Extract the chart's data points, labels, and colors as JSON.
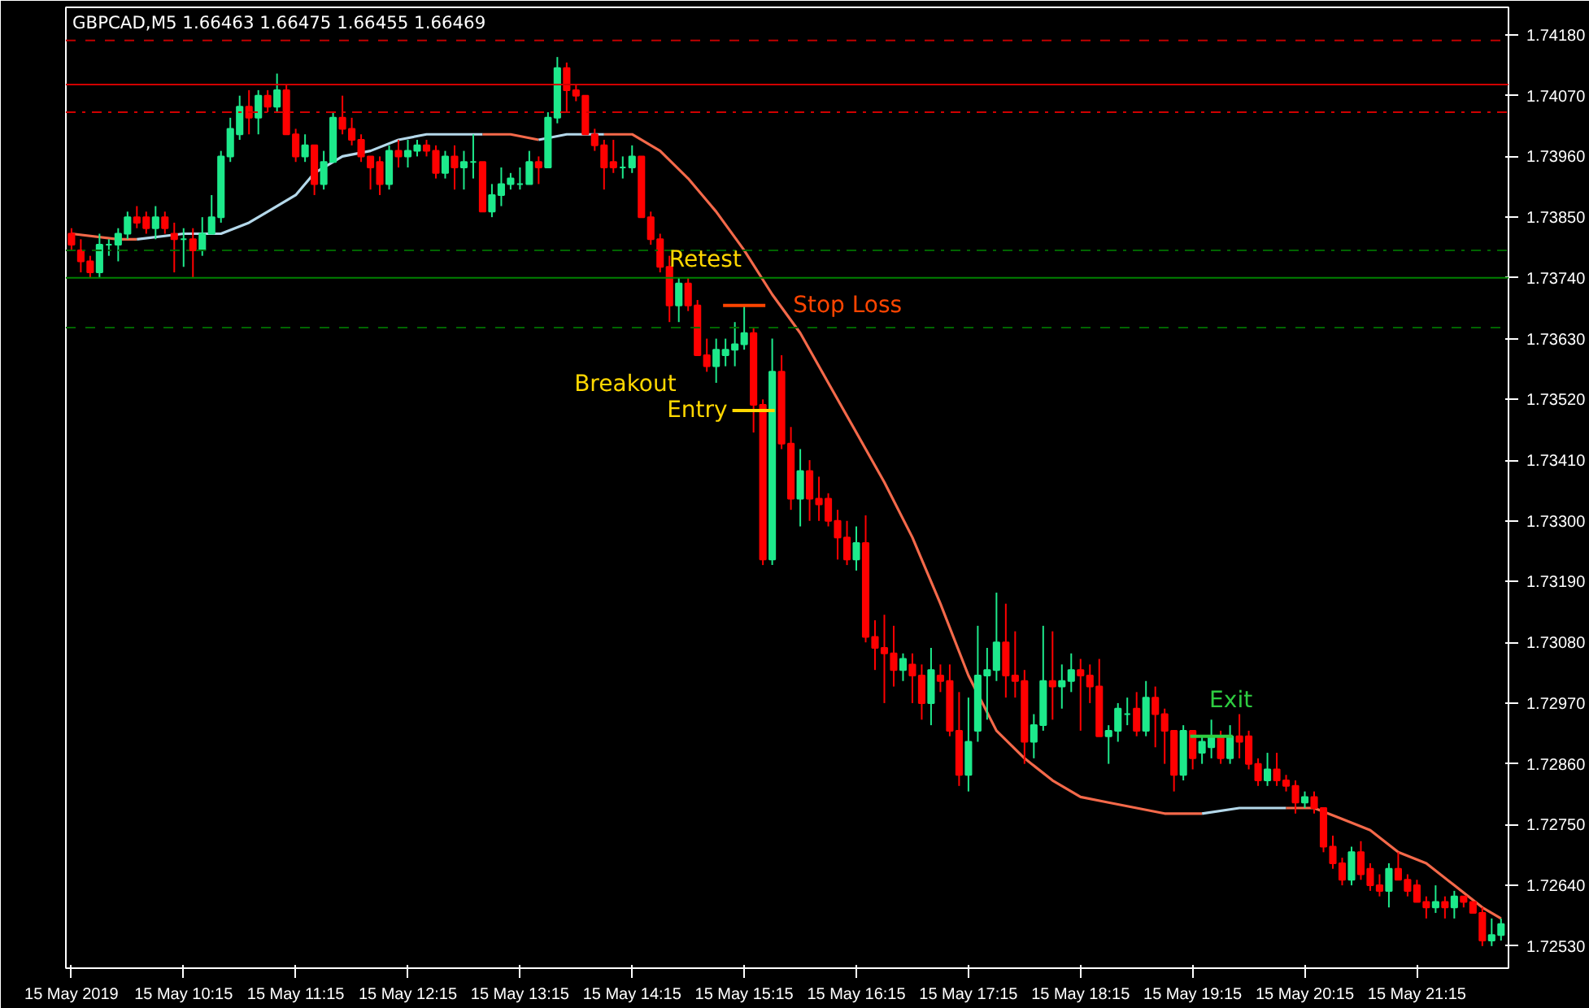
{
  "chart_data": {
    "type": "candlestick",
    "title": "GBPCAD,M5  1.66463 1.66475 1.66455 1.66469",
    "x": [
      "2019-05-15T09:15",
      "2019-05-15T09:20",
      "2019-05-15T09:25",
      "2019-05-15T09:30",
      "2019-05-15T09:35",
      "2019-05-15T09:40",
      "2019-05-15T09:45",
      "2019-05-15T09:50",
      "2019-05-15T09:55",
      "2019-05-15T10:00",
      "2019-05-15T10:05",
      "2019-05-15T10:10",
      "2019-05-15T10:15",
      "2019-05-15T10:20",
      "2019-05-15T10:25",
      "2019-05-15T10:30",
      "2019-05-15T10:35",
      "2019-05-15T10:40",
      "2019-05-15T10:45",
      "2019-05-15T10:50",
      "2019-05-15T10:55",
      "2019-05-15T11:00",
      "2019-05-15T11:05",
      "2019-05-15T11:10",
      "2019-05-15T11:15",
      "2019-05-15T11:20",
      "2019-05-15T11:25",
      "2019-05-15T11:30",
      "2019-05-15T11:35",
      "2019-05-15T11:40",
      "2019-05-15T11:45",
      "2019-05-15T11:50",
      "2019-05-15T11:55",
      "2019-05-15T12:00",
      "2019-05-15T12:05",
      "2019-05-15T12:10",
      "2019-05-15T12:15",
      "2019-05-15T12:20",
      "2019-05-15T12:25",
      "2019-05-15T12:30",
      "2019-05-15T12:35",
      "2019-05-15T12:40",
      "2019-05-15T12:45",
      "2019-05-15T12:50",
      "2019-05-15T12:55",
      "2019-05-15T13:00",
      "2019-05-15T13:05",
      "2019-05-15T13:10",
      "2019-05-15T13:15",
      "2019-05-15T13:20",
      "2019-05-15T13:25",
      "2019-05-15T13:30",
      "2019-05-15T13:35",
      "2019-05-15T13:40",
      "2019-05-15T13:45",
      "2019-05-15T13:50",
      "2019-05-15T13:55",
      "2019-05-15T14:00",
      "2019-05-15T14:05",
      "2019-05-15T14:10",
      "2019-05-15T14:15",
      "2019-05-15T14:20",
      "2019-05-15T14:25",
      "2019-05-15T14:30",
      "2019-05-15T14:35",
      "2019-05-15T14:40",
      "2019-05-15T14:45",
      "2019-05-15T14:50",
      "2019-05-15T14:55",
      "2019-05-15T15:00",
      "2019-05-15T15:05",
      "2019-05-15T15:10",
      "2019-05-15T15:15",
      "2019-05-15T15:20",
      "2019-05-15T15:25",
      "2019-05-15T15:30",
      "2019-05-15T15:35",
      "2019-05-15T15:40",
      "2019-05-15T15:45",
      "2019-05-15T15:50",
      "2019-05-15T15:55",
      "2019-05-15T16:00",
      "2019-05-15T16:05",
      "2019-05-15T16:10",
      "2019-05-15T16:15",
      "2019-05-15T16:20",
      "2019-05-15T16:25",
      "2019-05-15T16:30",
      "2019-05-15T16:35",
      "2019-05-15T16:40",
      "2019-05-15T16:45",
      "2019-05-15T16:50",
      "2019-05-15T16:55",
      "2019-05-15T17:00",
      "2019-05-15T17:05",
      "2019-05-15T17:10",
      "2019-05-15T17:15",
      "2019-05-15T17:20",
      "2019-05-15T17:25",
      "2019-05-15T17:30",
      "2019-05-15T17:35",
      "2019-05-15T17:40",
      "2019-05-15T17:45",
      "2019-05-15T17:50",
      "2019-05-15T17:55",
      "2019-05-15T18:00",
      "2019-05-15T18:05",
      "2019-05-15T18:10",
      "2019-05-15T18:15",
      "2019-05-15T18:20",
      "2019-05-15T18:25",
      "2019-05-15T18:30",
      "2019-05-15T18:35",
      "2019-05-15T18:40",
      "2019-05-15T18:45",
      "2019-05-15T18:50",
      "2019-05-15T18:55",
      "2019-05-15T19:00",
      "2019-05-15T19:05",
      "2019-05-15T19:10",
      "2019-05-15T19:15",
      "2019-05-15T19:20",
      "2019-05-15T19:25",
      "2019-05-15T19:30",
      "2019-05-15T19:35",
      "2019-05-15T19:40",
      "2019-05-15T19:45",
      "2019-05-15T19:50",
      "2019-05-15T19:55",
      "2019-05-15T20:00",
      "2019-05-15T20:05",
      "2019-05-15T20:10",
      "2019-05-15T20:15",
      "2019-05-15T20:20",
      "2019-05-15T20:25",
      "2019-05-15T20:30",
      "2019-05-15T20:35",
      "2019-05-15T20:40",
      "2019-05-15T20:45",
      "2019-05-15T20:50",
      "2019-05-15T20:55",
      "2019-05-15T21:00",
      "2019-05-15T21:05",
      "2019-05-15T21:10",
      "2019-05-15T21:15",
      "2019-05-15T21:20",
      "2019-05-15T21:25",
      "2019-05-15T21:30",
      "2019-05-15T21:35",
      "2019-05-15T21:40",
      "2019-05-15T21:45",
      "2019-05-15T21:50",
      "2019-05-15T21:55",
      "2019-05-15T22:00"
    ],
    "ohlc": [
      [
        1.7382,
        1.7383,
        1.7379,
        1.738
      ],
      [
        1.7379,
        1.7381,
        1.7375,
        1.7377
      ],
      [
        1.7377,
        1.7378,
        1.7374,
        1.7375
      ],
      [
        1.7375,
        1.7382,
        1.7374,
        1.738
      ],
      [
        1.738,
        1.7381,
        1.7378,
        1.738
      ],
      [
        1.738,
        1.7383,
        1.7377,
        1.7382
      ],
      [
        1.7382,
        1.7386,
        1.7381,
        1.7385
      ],
      [
        1.7385,
        1.7387,
        1.7383,
        1.7384
      ],
      [
        1.7385,
        1.7386,
        1.7382,
        1.7383
      ],
      [
        1.7383,
        1.7387,
        1.7381,
        1.7385
      ],
      [
        1.7385,
        1.7386,
        1.7382,
        1.7383
      ],
      [
        1.7382,
        1.7384,
        1.7375,
        1.7381
      ],
      [
        1.7381,
        1.7383,
        1.7376,
        1.7381
      ],
      [
        1.7381,
        1.7383,
        1.7374,
        1.7379
      ],
      [
        1.7379,
        1.7385,
        1.7378,
        1.7382
      ],
      [
        1.7382,
        1.7389,
        1.7382,
        1.7385
      ],
      [
        1.7385,
        1.7397,
        1.7384,
        1.7396
      ],
      [
        1.7396,
        1.7403,
        1.7395,
        1.7401
      ],
      [
        1.74,
        1.7407,
        1.7399,
        1.7405
      ],
      [
        1.7405,
        1.7408,
        1.74,
        1.7403
      ],
      [
        1.7403,
        1.7408,
        1.74,
        1.7407
      ],
      [
        1.7407,
        1.7408,
        1.7404,
        1.7405
      ],
      [
        1.7405,
        1.7411,
        1.7404,
        1.7408
      ],
      [
        1.7408,
        1.7409,
        1.74,
        1.74
      ],
      [
        1.74,
        1.7401,
        1.7395,
        1.7396
      ],
      [
        1.7396,
        1.74,
        1.7395,
        1.7398
      ],
      [
        1.7398,
        1.7398,
        1.7389,
        1.7391
      ],
      [
        1.7391,
        1.7397,
        1.739,
        1.7395
      ],
      [
        1.7395,
        1.7404,
        1.7395,
        1.7403
      ],
      [
        1.7403,
        1.7407,
        1.74,
        1.7401
      ],
      [
        1.7401,
        1.7403,
        1.7398,
        1.7399
      ],
      [
        1.7399,
        1.74,
        1.7395,
        1.7396
      ],
      [
        1.7396,
        1.7396,
        1.739,
        1.7394
      ],
      [
        1.7395,
        1.7396,
        1.7389,
        1.7391
      ],
      [
        1.7391,
        1.7398,
        1.739,
        1.7397
      ],
      [
        1.7397,
        1.7399,
        1.7394,
        1.7396
      ],
      [
        1.7396,
        1.7399,
        1.7394,
        1.7397
      ],
      [
        1.7397,
        1.7399,
        1.7396,
        1.7398
      ],
      [
        1.7398,
        1.7399,
        1.7396,
        1.7397
      ],
      [
        1.7397,
        1.7398,
        1.7392,
        1.7393
      ],
      [
        1.7393,
        1.7397,
        1.7392,
        1.7396
      ],
      [
        1.7396,
        1.7398,
        1.739,
        1.7394
      ],
      [
        1.7394,
        1.7397,
        1.739,
        1.7395
      ],
      [
        1.7395,
        1.74,
        1.7392,
        1.7395
      ],
      [
        1.7395,
        1.7395,
        1.7386,
        1.7386
      ],
      [
        1.7386,
        1.7391,
        1.7385,
        1.7389
      ],
      [
        1.7389,
        1.7394,
        1.7387,
        1.7391
      ],
      [
        1.7391,
        1.7393,
        1.739,
        1.7392
      ],
      [
        1.7391,
        1.7394,
        1.739,
        1.7391
      ],
      [
        1.7391,
        1.7397,
        1.7391,
        1.7395
      ],
      [
        1.7395,
        1.7396,
        1.7391,
        1.7394
      ],
      [
        1.7394,
        1.7404,
        1.7394,
        1.7403
      ],
      [
        1.7403,
        1.7414,
        1.7402,
        1.7412
      ],
      [
        1.7412,
        1.7413,
        1.7404,
        1.7408
      ],
      [
        1.7408,
        1.7409,
        1.7406,
        1.7407
      ],
      [
        1.7407,
        1.7407,
        1.74,
        1.74
      ],
      [
        1.74,
        1.7401,
        1.7397,
        1.7398
      ],
      [
        1.7398,
        1.7399,
        1.739,
        1.7394
      ],
      [
        1.7395,
        1.7399,
        1.7393,
        1.7394
      ],
      [
        1.7394,
        1.7396,
        1.7392,
        1.7394
      ],
      [
        1.7394,
        1.7398,
        1.7393,
        1.7396
      ],
      [
        1.7396,
        1.7396,
        1.7385,
        1.7385
      ],
      [
        1.7385,
        1.7386,
        1.738,
        1.7381
      ],
      [
        1.7381,
        1.7382,
        1.7375,
        1.7376
      ],
      [
        1.7376,
        1.7378,
        1.7366,
        1.7369
      ],
      [
        1.7369,
        1.7374,
        1.7366,
        1.7373
      ],
      [
        1.7373,
        1.7374,
        1.7368,
        1.7369
      ],
      [
        1.7369,
        1.737,
        1.736,
        1.736
      ],
      [
        1.736,
        1.7363,
        1.7357,
        1.7358
      ],
      [
        1.7358,
        1.7363,
        1.7355,
        1.7361
      ],
      [
        1.736,
        1.7363,
        1.7358,
        1.7361
      ],
      [
        1.7361,
        1.7366,
        1.7358,
        1.7362
      ],
      [
        1.7362,
        1.7369,
        1.7361,
        1.7364
      ],
      [
        1.7364,
        1.7365,
        1.7346,
        1.7351
      ],
      [
        1.7351,
        1.7352,
        1.7322,
        1.7323
      ],
      [
        1.7323,
        1.7363,
        1.7322,
        1.7357
      ],
      [
        1.7357,
        1.736,
        1.7343,
        1.7344
      ],
      [
        1.7344,
        1.7347,
        1.7332,
        1.7334
      ],
      [
        1.7334,
        1.7343,
        1.7329,
        1.7339
      ],
      [
        1.7339,
        1.7341,
        1.733,
        1.7334
      ],
      [
        1.7334,
        1.7338,
        1.733,
        1.7333
      ],
      [
        1.7334,
        1.7335,
        1.7329,
        1.733
      ],
      [
        1.733,
        1.7332,
        1.7323,
        1.7327
      ],
      [
        1.7327,
        1.733,
        1.7322,
        1.7323
      ],
      [
        1.7323,
        1.7329,
        1.7321,
        1.7326
      ],
      [
        1.7326,
        1.7331,
        1.7308,
        1.7309
      ],
      [
        1.7309,
        1.7312,
        1.7303,
        1.7307
      ],
      [
        1.7307,
        1.7313,
        1.7297,
        1.7306
      ],
      [
        1.7306,
        1.7311,
        1.73,
        1.7303
      ],
      [
        1.7303,
        1.7306,
        1.7301,
        1.7305
      ],
      [
        1.7304,
        1.7306,
        1.7297,
        1.7302
      ],
      [
        1.7302,
        1.7304,
        1.7294,
        1.7297
      ],
      [
        1.7297,
        1.7307,
        1.7293,
        1.7303
      ],
      [
        1.7302,
        1.7304,
        1.7299,
        1.7301
      ],
      [
        1.7301,
        1.7304,
        1.7291,
        1.7292
      ],
      [
        1.7292,
        1.7299,
        1.7282,
        1.7284
      ],
      [
        1.7284,
        1.7298,
        1.7281,
        1.729
      ],
      [
        1.7292,
        1.7311,
        1.729,
        1.7302
      ],
      [
        1.7302,
        1.7307,
        1.7294,
        1.7303
      ],
      [
        1.7303,
        1.7317,
        1.7301,
        1.7308
      ],
      [
        1.7308,
        1.7315,
        1.7298,
        1.7302
      ],
      [
        1.7302,
        1.731,
        1.7298,
        1.7301
      ],
      [
        1.7301,
        1.7303,
        1.7286,
        1.729
      ],
      [
        1.729,
        1.7295,
        1.7287,
        1.7293
      ],
      [
        1.7293,
        1.7311,
        1.7292,
        1.7301
      ],
      [
        1.7301,
        1.731,
        1.7294,
        1.73
      ],
      [
        1.73,
        1.7304,
        1.7296,
        1.7301
      ],
      [
        1.7301,
        1.7306,
        1.7299,
        1.7303
      ],
      [
        1.7303,
        1.7305,
        1.7292,
        1.7302
      ],
      [
        1.7302,
        1.7304,
        1.7297,
        1.73
      ],
      [
        1.73,
        1.7305,
        1.7291,
        1.7291
      ],
      [
        1.7291,
        1.7293,
        1.7286,
        1.7292
      ],
      [
        1.7292,
        1.7297,
        1.729,
        1.7296
      ],
      [
        1.7295,
        1.7298,
        1.7293,
        1.7295
      ],
      [
        1.7296,
        1.7299,
        1.7291,
        1.7292
      ],
      [
        1.7292,
        1.7301,
        1.7291,
        1.7298
      ],
      [
        1.7298,
        1.73,
        1.7289,
        1.7295
      ],
      [
        1.7295,
        1.7296,
        1.7286,
        1.7292
      ],
      [
        1.7292,
        1.7292,
        1.7281,
        1.7284
      ],
      [
        1.7284,
        1.7293,
        1.7283,
        1.7292
      ],
      [
        1.7292,
        1.7292,
        1.7285,
        1.7287
      ],
      [
        1.7288,
        1.7291,
        1.7286,
        1.729
      ],
      [
        1.7289,
        1.7294,
        1.7287,
        1.7291
      ],
      [
        1.7291,
        1.7292,
        1.7286,
        1.7287
      ],
      [
        1.7287,
        1.7293,
        1.7286,
        1.7291
      ],
      [
        1.7291,
        1.7295,
        1.7287,
        1.729
      ],
      [
        1.7291,
        1.7292,
        1.7285,
        1.7286
      ],
      [
        1.7286,
        1.7287,
        1.7282,
        1.7283
      ],
      [
        1.7283,
        1.7288,
        1.7282,
        1.7285
      ],
      [
        1.7285,
        1.7288,
        1.7282,
        1.7283
      ],
      [
        1.7283,
        1.7284,
        1.7281,
        1.7282
      ],
      [
        1.7282,
        1.7283,
        1.7277,
        1.7279
      ],
      [
        1.7279,
        1.7281,
        1.7278,
        1.728
      ],
      [
        1.728,
        1.7281,
        1.7277,
        1.7278
      ],
      [
        1.7278,
        1.7278,
        1.727,
        1.7271
      ],
      [
        1.7271,
        1.7273,
        1.7267,
        1.7268
      ],
      [
        1.7268,
        1.7269,
        1.7264,
        1.7265
      ],
      [
        1.7265,
        1.7271,
        1.7264,
        1.727
      ],
      [
        1.727,
        1.7272,
        1.7265,
        1.7266
      ],
      [
        1.7267,
        1.7268,
        1.7263,
        1.7264
      ],
      [
        1.7264,
        1.7266,
        1.7262,
        1.7263
      ],
      [
        1.7263,
        1.7268,
        1.726,
        1.7267
      ],
      [
        1.7267,
        1.727,
        1.7265,
        1.7265
      ],
      [
        1.7265,
        1.7266,
        1.7262,
        1.7263
      ],
      [
        1.7264,
        1.7265,
        1.7261,
        1.7261
      ],
      [
        1.7261,
        1.7262,
        1.7258,
        1.726
      ],
      [
        1.726,
        1.7264,
        1.7259,
        1.7261
      ],
      [
        1.7261,
        1.7262,
        1.7258,
        1.726
      ],
      [
        1.726,
        1.7263,
        1.7258,
        1.7262
      ],
      [
        1.7262,
        1.7262,
        1.726,
        1.7261
      ],
      [
        1.7261,
        1.7261,
        1.7259,
        1.7259
      ],
      [
        1.7259,
        1.726,
        1.7253,
        1.7254
      ],
      [
        1.7254,
        1.7258,
        1.7253,
        1.7255
      ],
      [
        1.7255,
        1.7258,
        1.7254,
        1.7257
      ]
    ],
    "series": [
      {
        "type": "line",
        "color": "#f4694a",
        "x": [
          "2019-05-15T09:15",
          "2019-05-15T09:40",
          "2019-05-15T09:50"
        ],
        "values": [
          1.7382,
          1.7381,
          1.7381
        ]
      },
      {
        "type": "line",
        "color": "#b4d8ea",
        "x": [
          "2019-05-15T09:50",
          "2019-05-15T10:15",
          "2019-05-15T10:35",
          "2019-05-15T10:50",
          "2019-05-15T11:00",
          "2019-05-15T11:15",
          "2019-05-15T11:25",
          "2019-05-15T11:40",
          "2019-05-15T11:55",
          "2019-05-15T12:10",
          "2019-05-15T12:25",
          "2019-05-15T12:45",
          "2019-05-15T12:55"
        ],
        "values": [
          1.7381,
          1.7382,
          1.7382,
          1.7384,
          1.7386,
          1.7389,
          1.7393,
          1.7396,
          1.7397,
          1.7399,
          1.74,
          1.74,
          1.74
        ]
      },
      {
        "type": "line",
        "color": "#f4694a",
        "x": [
          "2019-05-15T12:55",
          "2019-05-15T13:10",
          "2019-05-15T13:25"
        ],
        "values": [
          1.74,
          1.74,
          1.7399
        ]
      },
      {
        "type": "line",
        "color": "#b4d8ea",
        "x": [
          "2019-05-15T13:25",
          "2019-05-15T13:40",
          "2019-05-15T14:00"
        ],
        "values": [
          1.7399,
          1.74,
          1.74
        ]
      },
      {
        "type": "line",
        "color": "#f4694a",
        "x": [
          "2019-05-15T14:00",
          "2019-05-15T14:15",
          "2019-05-15T14:30",
          "2019-05-15T14:45",
          "2019-05-15T15:00",
          "2019-05-15T15:15",
          "2019-05-15T15:30",
          "2019-05-15T15:45",
          "2019-05-15T16:00",
          "2019-05-15T16:15",
          "2019-05-15T16:30",
          "2019-05-15T16:45",
          "2019-05-15T17:00",
          "2019-05-15T17:15",
          "2019-05-15T17:30",
          "2019-05-15T17:45",
          "2019-05-15T18:00",
          "2019-05-15T18:15",
          "2019-05-15T18:30",
          "2019-05-15T18:45",
          "2019-05-15T19:00",
          "2019-05-15T19:20"
        ],
        "values": [
          1.74,
          1.74,
          1.7397,
          1.7392,
          1.7386,
          1.7379,
          1.7371,
          1.7364,
          1.7355,
          1.7346,
          1.7337,
          1.7327,
          1.7315,
          1.7302,
          1.7292,
          1.7287,
          1.7283,
          1.728,
          1.7279,
          1.7278,
          1.7277,
          1.7277
        ]
      },
      {
        "type": "line",
        "color": "#b4d8ea",
        "x": [
          "2019-05-15T19:20",
          "2019-05-15T19:40",
          "2019-05-15T20:05"
        ],
        "values": [
          1.7277,
          1.7278,
          1.7278
        ]
      },
      {
        "type": "line",
        "color": "#f4694a",
        "x": [
          "2019-05-15T20:05",
          "2019-05-15T20:20",
          "2019-05-15T20:35",
          "2019-05-15T20:50",
          "2019-05-15T21:05",
          "2019-05-15T21:20",
          "2019-05-15T21:35",
          "2019-05-15T21:50",
          "2019-05-15T22:00"
        ],
        "values": [
          1.7278,
          1.7278,
          1.7276,
          1.7274,
          1.727,
          1.7268,
          1.7264,
          1.726,
          1.7258
        ]
      }
    ],
    "ref_lines": [
      {
        "axis": "y",
        "value": 1.7417,
        "color": "#c00000",
        "line_style": "dashed"
      },
      {
        "axis": "y",
        "value": 1.7409,
        "color": "#d00000",
        "line_style": "solid"
      },
      {
        "axis": "y",
        "value": 1.7404,
        "color": "#d00000",
        "line_style": "dashdot"
      },
      {
        "axis": "y",
        "value": 1.7379,
        "color": "#006400",
        "line_style": "dashdot"
      },
      {
        "axis": "y",
        "value": 1.7374,
        "color": "#008000",
        "line_style": "solid"
      },
      {
        "axis": "y",
        "value": 1.7365,
        "color": "#006400",
        "line_style": "dashed"
      }
    ],
    "annotations": [
      {
        "text": "Retest",
        "x": "2019-05-15T14:40",
        "y": 1.7374
      },
      {
        "text": "Stop Loss",
        "x": "2019-05-15T15:15",
        "y": 1.7369
      },
      {
        "text": "Breakout",
        "x": "2019-05-15T14:50",
        "y": 1.736
      },
      {
        "text": "Entry",
        "x": "2019-05-15T15:20",
        "y": 1.735
      },
      {
        "text": "Exit",
        "x": "2019-05-15T19:25",
        "y": 1.7291
      }
    ],
    "xlim": [
      "2019-05-15T09:12",
      "2019-05-15T22:04"
    ],
    "xticks": [
      {
        "value": "2019-05-15T09:15",
        "label": "15 May 2019"
      },
      {
        "value": "2019-05-15T10:15",
        "label": "15 May 10:15"
      },
      {
        "value": "2019-05-15T11:15",
        "label": "15 May 11:15"
      },
      {
        "value": "2019-05-15T12:15",
        "label": "15 May 12:15"
      },
      {
        "value": "2019-05-15T13:15",
        "label": "15 May 13:15"
      },
      {
        "value": "2019-05-15T14:15",
        "label": "15 May 14:15"
      },
      {
        "value": "2019-05-15T15:15",
        "label": "15 May 15:15"
      },
      {
        "value": "2019-05-15T16:15",
        "label": "15 May 16:15"
      },
      {
        "value": "2019-05-15T17:15",
        "label": "15 May 17:15"
      },
      {
        "value": "2019-05-15T18:15",
        "label": "15 May 18:15"
      },
      {
        "value": "2019-05-15T19:15",
        "label": "15 May 19:15"
      },
      {
        "value": "2019-05-15T20:15",
        "label": "15 May 20:15"
      },
      {
        "value": "2019-05-15T21:15",
        "label": "15 May 21:15"
      }
    ],
    "ylim": [
      1.7249,
      1.7423
    ],
    "yticks": [
      {
        "value": 1.7253,
        "label": "1.72530"
      },
      {
        "value": 1.7264,
        "label": "1.72640"
      },
      {
        "value": 1.7275,
        "label": "1.72750"
      },
      {
        "value": 1.7286,
        "label": "1.72860"
      },
      {
        "value": 1.7297,
        "label": "1.72970"
      },
      {
        "value": 1.7308,
        "label": "1.73080"
      },
      {
        "value": 1.7319,
        "label": "1.73190"
      },
      {
        "value": 1.733,
        "label": "1.73300"
      },
      {
        "value": 1.7341,
        "label": "1.73410"
      },
      {
        "value": 1.7352,
        "label": "1.73520"
      },
      {
        "value": 1.7363,
        "label": "1.73630"
      },
      {
        "value": 1.7374,
        "label": "1.73740"
      },
      {
        "value": 1.7385,
        "label": "1.73850"
      },
      {
        "value": 1.7396,
        "label": "1.73960"
      },
      {
        "value": 1.7407,
        "label": "1.74070"
      },
      {
        "value": 1.7418,
        "label": "1.74180"
      }
    ]
  }
}
